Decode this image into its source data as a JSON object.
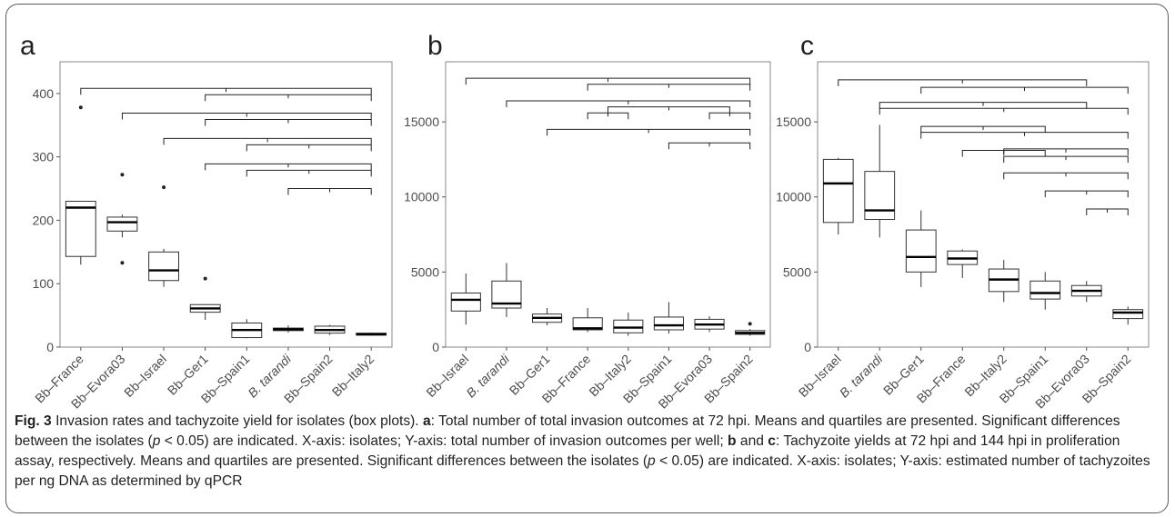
{
  "chart_data": [
    {
      "panel": "a",
      "type": "box",
      "ylim": [
        0,
        450
      ],
      "yticks": [
        0,
        100,
        200,
        300,
        400
      ],
      "categories": [
        "Bb–France",
        "Bb–Evora03",
        "Bb–Israel",
        "Bb–Ger1",
        "Bb–Spain1",
        "B. tarandi",
        "Bb–Spain2",
        "Bb–Italy2"
      ],
      "italic_categories": [
        5
      ],
      "boxes": [
        {
          "min": 130,
          "q1": 143,
          "median": 220,
          "q3": 230,
          "max": 230,
          "outliers": [
            378
          ]
        },
        {
          "min": 173,
          "q1": 183,
          "median": 197,
          "q3": 205,
          "max": 209,
          "outliers": [
            272,
            133
          ]
        },
        {
          "min": 95,
          "q1": 105,
          "median": 121,
          "q3": 150,
          "max": 155,
          "outliers": [
            252
          ]
        },
        {
          "min": 43,
          "q1": 55,
          "median": 61,
          "q3": 67,
          "max": 67,
          "outliers": [
            108
          ]
        },
        {
          "min": 14,
          "q1": 15,
          "median": 27,
          "q3": 38,
          "max": 44,
          "outliers": []
        },
        {
          "min": 23,
          "q1": 26,
          "median": 28,
          "q3": 30,
          "max": 34,
          "outliers": []
        },
        {
          "min": 19,
          "q1": 22,
          "median": 27,
          "q3": 33,
          "max": 35,
          "outliers": []
        },
        {
          "min": 18,
          "q1": 19,
          "median": 20,
          "q3": 22,
          "max": 23,
          "outliers": []
        }
      ],
      "brackets": [
        {
          "from": 0,
          "to": 7,
          "y": 408
        },
        {
          "from": 3,
          "to": 7,
          "y": 398
        },
        {
          "from": 1,
          "to": 7,
          "y": 369
        },
        {
          "from": 3,
          "to": 7,
          "y": 359
        },
        {
          "from": 2,
          "to": 7,
          "y": 329
        },
        {
          "from": 4,
          "to": 7,
          "y": 319
        },
        {
          "from": 3,
          "to": 7,
          "y": 289
        },
        {
          "from": 4,
          "to": 7,
          "y": 279
        },
        {
          "from": 5,
          "to": 7,
          "y": 250
        }
      ]
    },
    {
      "panel": "b",
      "type": "box",
      "ylim": [
        0,
        19000
      ],
      "yticks": [
        0,
        5000,
        10000,
        15000
      ],
      "categories": [
        "Bb–Israel",
        "B. tarandi",
        "Bb–Ger1",
        "Bb–France",
        "Bb–Italy2",
        "Bb–Spain1",
        "Bb–Evora03",
        "Bb–Spain2"
      ],
      "italic_categories": [
        1
      ],
      "boxes": [
        {
          "min": 1500,
          "q1": 2400,
          "median": 3150,
          "q3": 3600,
          "max": 4900,
          "outliers": []
        },
        {
          "min": 2000,
          "q1": 2600,
          "median": 2900,
          "q3": 4400,
          "max": 5600,
          "outliers": []
        },
        {
          "min": 1450,
          "q1": 1650,
          "median": 1950,
          "q3": 2200,
          "max": 2600,
          "outliers": []
        },
        {
          "min": 1000,
          "q1": 1150,
          "median": 1250,
          "q3": 1950,
          "max": 2600,
          "outliers": []
        },
        {
          "min": 750,
          "q1": 950,
          "median": 1300,
          "q3": 1800,
          "max": 2300,
          "outliers": []
        },
        {
          "min": 900,
          "q1": 1150,
          "median": 1450,
          "q3": 2000,
          "max": 3000,
          "outliers": []
        },
        {
          "min": 1000,
          "q1": 1200,
          "median": 1500,
          "q3": 1850,
          "max": 2050,
          "outliers": []
        },
        {
          "min": 750,
          "q1": 850,
          "median": 950,
          "q3": 1100,
          "max": 1200,
          "outliers": [
            1550
          ]
        }
      ],
      "brackets": [
        {
          "from": 0,
          "to": 7,
          "y": 17900
        },
        {
          "from": 3,
          "to": 7,
          "y": 17500
        },
        {
          "from": 1,
          "to": 7,
          "y": 16400
        },
        {
          "from": 3,
          "to": 4,
          "y": 15600
        },
        {
          "from": 3.5,
          "to": 6.5,
          "y": 16000
        },
        {
          "from": 6,
          "to": 7,
          "y": 15600
        },
        {
          "from": 2,
          "to": 7,
          "y": 14500
        },
        {
          "from": 5,
          "to": 7,
          "y": 13600
        }
      ]
    },
    {
      "panel": "c",
      "type": "box",
      "ylim": [
        0,
        19000
      ],
      "yticks": [
        0,
        5000,
        10000,
        15000
      ],
      "categories": [
        "Bb–Israel",
        "B. tarandi",
        "Bb–Ger1",
        "Bb–France",
        "Bb–Italy2",
        "Bb–Spain1",
        "Bb–Evora03",
        "Bb–Spain2"
      ],
      "italic_categories": [
        1
      ],
      "boxes": [
        {
          "min": 7500,
          "q1": 8300,
          "median": 10900,
          "q3": 12500,
          "max": 12600,
          "outliers": []
        },
        {
          "min": 7300,
          "q1": 8500,
          "median": 9100,
          "q3": 11700,
          "max": 14800,
          "outliers": []
        },
        {
          "min": 4000,
          "q1": 5000,
          "median": 6000,
          "q3": 7800,
          "max": 9100,
          "outliers": []
        },
        {
          "min": 4600,
          "q1": 5500,
          "median": 5900,
          "q3": 6400,
          "max": 6500,
          "outliers": []
        },
        {
          "min": 3000,
          "q1": 3700,
          "median": 4500,
          "q3": 5200,
          "max": 5800,
          "outliers": []
        },
        {
          "min": 2500,
          "q1": 3200,
          "median": 3600,
          "q3": 4400,
          "max": 5000,
          "outliers": []
        },
        {
          "min": 3000,
          "q1": 3400,
          "median": 3750,
          "q3": 4100,
          "max": 4400,
          "outliers": []
        },
        {
          "min": 1500,
          "q1": 1900,
          "median": 2300,
          "q3": 2500,
          "max": 2700,
          "outliers": []
        }
      ],
      "brackets": [
        {
          "from": 0,
          "to": 6,
          "y": 17800
        },
        {
          "from": 2,
          "to": 7,
          "y": 17300
        },
        {
          "from": 1,
          "to": 6,
          "y": 16300
        },
        {
          "from": 1,
          "to": 7,
          "y": 15900
        },
        {
          "from": 2,
          "to": 5,
          "y": 14700
        },
        {
          "from": 2,
          "to": 7,
          "y": 14300
        },
        {
          "from": 4,
          "to": 7,
          "y": 13200
        },
        {
          "from": 3,
          "to": 5,
          "y": 13100
        },
        {
          "from": 4,
          "to": 7,
          "y": 12700
        },
        {
          "from": 4,
          "to": 7,
          "y": 11600
        },
        {
          "from": 5,
          "to": 7,
          "y": 10400
        },
        {
          "from": 6,
          "to": 7,
          "y": 9200
        }
      ]
    }
  ],
  "caption": {
    "fig_label": "Fig. 3",
    "lead": " Invasion rates and tachyzoite yield for isolates (box plots). ",
    "a_label": "a",
    "a_text": ": Total number of total invasion outcomes at 72 hpi. Means and quartiles are presented. Significant differences between the isolates (",
    "p_symbol": "p",
    "p_value_1": " < 0.05) are indicated. X-axis: isolates; Y-axis: total number of invasion outcomes per well; ",
    "b_label": "b",
    "and_text": " and ",
    "c_label": "c",
    "bc_text": ": Tachyzoite yields at 72 hpi and 144 hpi in proliferation assay, respectively. Means and quartiles are presented. Significant differences between the isolates (",
    "p_value_2": " < 0.05) are indicated. X-axis: isolates; Y-axis: estimated number of tachyzoites per ng DNA as determined by qPCR"
  }
}
